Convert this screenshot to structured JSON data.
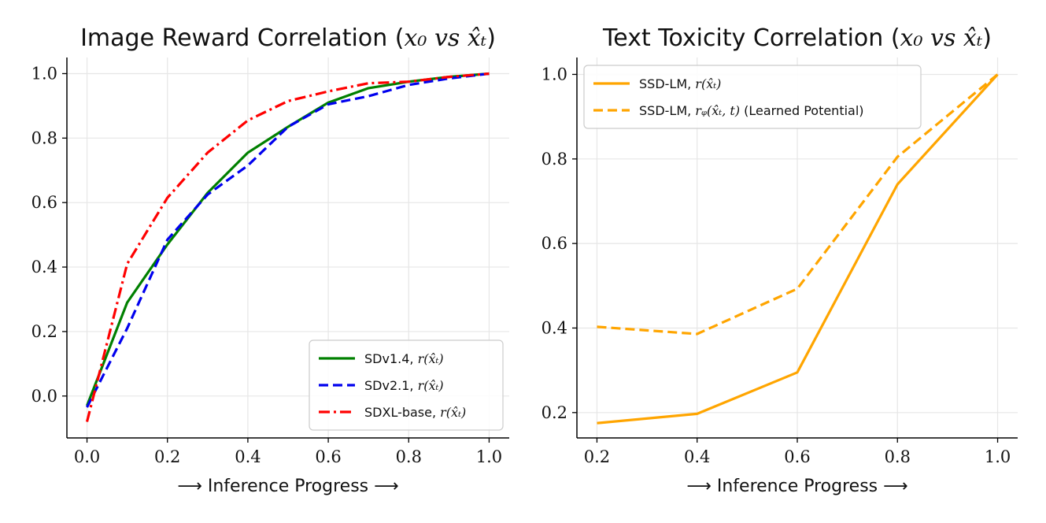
{
  "chart_data": [
    {
      "type": "line",
      "title_prefix": "Image Reward Correlation (",
      "title_math": "x₀ vs x̂ₜ",
      "title_suffix": ")",
      "xlabel": "⟶ Inference Progress ⟶",
      "ylabel": "",
      "xlim": [
        -0.05,
        1.05
      ],
      "ylim": [
        -0.13,
        1.05
      ],
      "xticks": [
        0.0,
        0.2,
        0.4,
        0.6,
        0.8,
        1.0
      ],
      "xtick_labels": [
        "0.0",
        "0.2",
        "0.4",
        "0.6",
        "0.8",
        "1.0"
      ],
      "yticks": [
        0.0,
        0.2,
        0.4,
        0.6,
        0.8,
        1.0
      ],
      "ytick_labels": [
        "0.0",
        "0.2",
        "0.4",
        "0.6",
        "0.8",
        "1.0"
      ],
      "grid": true,
      "legend_position": "lower-right",
      "series": [
        {
          "name": "SDv1.4, ",
          "name_math": "r(x̂ₜ)",
          "color": "#008000",
          "style": "solid",
          "x": [
            0.0,
            0.1,
            0.2,
            0.3,
            0.4,
            0.5,
            0.6,
            0.7,
            0.8,
            0.9,
            1.0
          ],
          "y": [
            -0.03,
            0.29,
            0.47,
            0.63,
            0.755,
            0.835,
            0.91,
            0.955,
            0.975,
            0.99,
            1.0
          ]
        },
        {
          "name": "SDv2.1, ",
          "name_math": "r(x̂ₜ)",
          "color": "#0000ee",
          "style": "dashed",
          "x": [
            0.0,
            0.1,
            0.2,
            0.3,
            0.4,
            0.5,
            0.6,
            0.7,
            0.8,
            0.9,
            1.0
          ],
          "y": [
            -0.035,
            0.21,
            0.485,
            0.625,
            0.715,
            0.835,
            0.905,
            0.93,
            0.965,
            0.985,
            1.0
          ]
        },
        {
          "name": "SDXL-base, ",
          "name_math": "r(x̂ₜ)",
          "color": "#ff0000",
          "style": "dashdot",
          "x": [
            0.0,
            0.1,
            0.2,
            0.3,
            0.4,
            0.5,
            0.6,
            0.7,
            0.8,
            0.9,
            1.0
          ],
          "y": [
            -0.08,
            0.41,
            0.615,
            0.755,
            0.855,
            0.915,
            0.945,
            0.97,
            0.975,
            0.99,
            1.0
          ]
        }
      ]
    },
    {
      "type": "line",
      "title_prefix": "Text Toxicity Correlation (",
      "title_math": "x₀ vs x̂ₜ",
      "title_suffix": ")",
      "xlabel": "⟶ Inference Progress ⟶",
      "ylabel": "",
      "xlim": [
        0.16,
        1.04
      ],
      "ylim": [
        0.14,
        1.04
      ],
      "xticks": [
        0.2,
        0.4,
        0.6,
        0.8,
        1.0
      ],
      "xtick_labels": [
        "0.2",
        "0.4",
        "0.6",
        "0.8",
        "1.0"
      ],
      "yticks": [
        0.2,
        0.4,
        0.6,
        0.8,
        1.0
      ],
      "ytick_labels": [
        "0.2",
        "0.4",
        "0.6",
        "0.8",
        "1.0"
      ],
      "grid": true,
      "legend_position": "upper-left",
      "series": [
        {
          "name": "SSD-LM, ",
          "name_math": "r(x̂ₜ)",
          "name_suffix": "",
          "color": "#ffa500",
          "style": "solid",
          "x": [
            0.2,
            0.4,
            0.6,
            0.8,
            1.0
          ],
          "y": [
            0.175,
            0.197,
            0.295,
            0.74,
            1.0
          ]
        },
        {
          "name": "SSD-LM, ",
          "name_math": "rᵩ(x̂ₜ, t)",
          "name_suffix": " (Learned Potential)",
          "color": "#ffa500",
          "style": "dashed",
          "x": [
            0.2,
            0.4,
            0.6,
            0.8,
            1.0
          ],
          "y": [
            0.403,
            0.386,
            0.493,
            0.805,
            1.0
          ]
        }
      ]
    }
  ]
}
